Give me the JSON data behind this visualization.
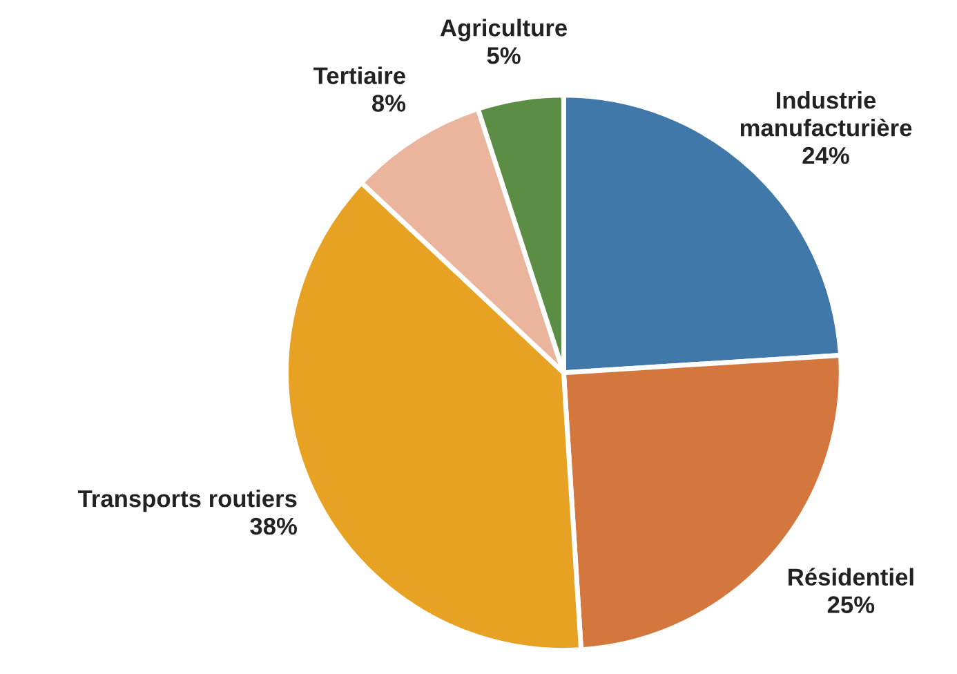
{
  "chart_data": {
    "type": "pie",
    "categories": [
      "Industrie\nmanufacturière",
      "Résidentiel",
      "Transports routiers",
      "Tertiaire",
      "Agriculture"
    ],
    "values": [
      24,
      25,
      38,
      8,
      5
    ],
    "value_labels": [
      "24%",
      "25%",
      "38%",
      "8%",
      "5%"
    ],
    "colors": [
      "#4178aa",
      "#d3773f",
      "#e8a223",
      "#eab59c",
      "#5b8e44"
    ],
    "legend": false
  }
}
